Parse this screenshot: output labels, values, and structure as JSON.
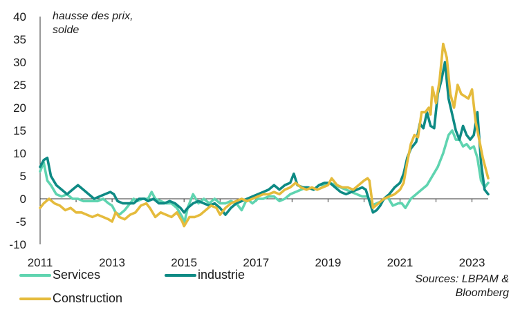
{
  "chart_data": {
    "type": "line",
    "title": "",
    "annotation": [
      "hausse des prix,",
      "solde"
    ],
    "xlabel": "",
    "ylabel": "",
    "xlim": [
      2011.0,
      2023.45
    ],
    "ylim": [
      -10,
      40
    ],
    "yticks": [
      -10,
      -5,
      0,
      5,
      10,
      15,
      20,
      25,
      30,
      35,
      40
    ],
    "xticks": [
      2011,
      2013,
      2015,
      2017,
      2019,
      2021,
      2023
    ],
    "grid": false,
    "source": [
      "Sources: LBPAM &",
      "Bloomberg"
    ],
    "series": [
      {
        "name": "Services",
        "color": "#5fd4b0",
        "points": [
          [
            2011.0,
            6
          ],
          [
            2011.1,
            8
          ],
          [
            2011.2,
            4
          ],
          [
            2011.3,
            3
          ],
          [
            2011.45,
            1
          ],
          [
            2011.6,
            0.5
          ],
          [
            2011.75,
            1
          ],
          [
            2011.9,
            0
          ],
          [
            2012.05,
            0
          ],
          [
            2012.2,
            -0.5
          ],
          [
            2012.4,
            -0.5
          ],
          [
            2012.6,
            -0.5
          ],
          [
            2012.75,
            0
          ],
          [
            2012.9,
            -1
          ],
          [
            2013.0,
            -1.5
          ],
          [
            2013.1,
            -3
          ],
          [
            2013.2,
            -3.5
          ],
          [
            2013.35,
            -2.5
          ],
          [
            2013.5,
            -1
          ],
          [
            2013.6,
            0
          ],
          [
            2013.7,
            -0.5
          ],
          [
            2013.85,
            0
          ],
          [
            2014.0,
            0
          ],
          [
            2014.1,
            1.5
          ],
          [
            2014.2,
            0
          ],
          [
            2014.35,
            -0.5
          ],
          [
            2014.5,
            -1
          ],
          [
            2014.65,
            -1
          ],
          [
            2014.8,
            -2
          ],
          [
            2014.95,
            -4
          ],
          [
            2015.0,
            -5.5
          ],
          [
            2015.1,
            -2
          ],
          [
            2015.25,
            1
          ],
          [
            2015.4,
            -1
          ],
          [
            2015.55,
            0
          ],
          [
            2015.7,
            -1
          ],
          [
            2015.85,
            0
          ],
          [
            2016.0,
            -1
          ],
          [
            2016.15,
            -1
          ],
          [
            2016.3,
            -0.5
          ],
          [
            2016.45,
            -1
          ],
          [
            2016.6,
            -2.5
          ],
          [
            2016.75,
            0
          ],
          [
            2016.9,
            -1
          ],
          [
            2017.05,
            0
          ],
          [
            2017.2,
            0
          ],
          [
            2017.35,
            0.5
          ],
          [
            2017.5,
            0.5
          ],
          [
            2017.65,
            -0.5
          ],
          [
            2017.8,
            0
          ],
          [
            2017.95,
            1
          ],
          [
            2018.1,
            1.5
          ],
          [
            2018.25,
            2
          ],
          [
            2018.4,
            2.5
          ],
          [
            2018.6,
            2
          ],
          [
            2018.75,
            3
          ],
          [
            2018.9,
            3
          ],
          [
            2019.05,
            3.5
          ],
          [
            2019.2,
            3
          ],
          [
            2019.35,
            2.5
          ],
          [
            2019.5,
            2
          ],
          [
            2019.65,
            1.5
          ],
          [
            2019.8,
            1
          ],
          [
            2019.95,
            0.5
          ],
          [
            2020.1,
            0.5
          ],
          [
            2020.2,
            -1.5
          ],
          [
            2020.35,
            -1
          ],
          [
            2020.5,
            -0.5
          ],
          [
            2020.65,
            0.5
          ],
          [
            2020.8,
            -1.5
          ],
          [
            2020.95,
            -1
          ],
          [
            2021.05,
            -1
          ],
          [
            2021.15,
            -2
          ],
          [
            2021.3,
            0
          ],
          [
            2021.45,
            1
          ],
          [
            2021.6,
            2
          ],
          [
            2021.75,
            3
          ],
          [
            2021.9,
            5
          ],
          [
            2022.05,
            7
          ],
          [
            2022.2,
            10
          ],
          [
            2022.35,
            14
          ],
          [
            2022.45,
            15
          ],
          [
            2022.55,
            13
          ],
          [
            2022.65,
            13
          ],
          [
            2022.75,
            11.5
          ],
          [
            2022.85,
            12
          ],
          [
            2022.95,
            11
          ],
          [
            2023.05,
            11.5
          ],
          [
            2023.15,
            9
          ],
          [
            2023.25,
            4
          ],
          [
            2023.35,
            2.5
          ],
          [
            2023.45,
            3.5
          ]
        ]
      },
      {
        "name": "industrie",
        "color": "#0e8a84",
        "points": [
          [
            2011.0,
            7
          ],
          [
            2011.1,
            8.5
          ],
          [
            2011.2,
            9
          ],
          [
            2011.3,
            5
          ],
          [
            2011.45,
            3
          ],
          [
            2011.6,
            2
          ],
          [
            2011.75,
            1
          ],
          [
            2011.9,
            2
          ],
          [
            2012.05,
            3
          ],
          [
            2012.2,
            2
          ],
          [
            2012.35,
            1
          ],
          [
            2012.5,
            0
          ],
          [
            2012.65,
            0.5
          ],
          [
            2012.8,
            1
          ],
          [
            2012.95,
            1.5
          ],
          [
            2013.05,
            1
          ],
          [
            2013.15,
            -0.5
          ],
          [
            2013.3,
            -1
          ],
          [
            2013.45,
            -1
          ],
          [
            2013.6,
            -1
          ],
          [
            2013.75,
            0
          ],
          [
            2013.9,
            0
          ],
          [
            2014.0,
            -0.5
          ],
          [
            2014.15,
            0
          ],
          [
            2014.3,
            -1
          ],
          [
            2014.45,
            -1
          ],
          [
            2014.6,
            -0.5
          ],
          [
            2014.75,
            -1
          ],
          [
            2014.9,
            -2
          ],
          [
            2015.0,
            -3
          ],
          [
            2015.1,
            -2
          ],
          [
            2015.25,
            -1
          ],
          [
            2015.4,
            -0.5
          ],
          [
            2015.55,
            -1
          ],
          [
            2015.7,
            -1.5
          ],
          [
            2015.85,
            -1
          ],
          [
            2016.0,
            -2
          ],
          [
            2016.15,
            -3.5
          ],
          [
            2016.3,
            -2
          ],
          [
            2016.45,
            -1
          ],
          [
            2016.6,
            -0.5
          ],
          [
            2016.75,
            0
          ],
          [
            2016.9,
            0.5
          ],
          [
            2017.05,
            1
          ],
          [
            2017.2,
            1.5
          ],
          [
            2017.35,
            2
          ],
          [
            2017.5,
            3
          ],
          [
            2017.65,
            2
          ],
          [
            2017.8,
            3
          ],
          [
            2017.95,
            3.5
          ],
          [
            2018.05,
            5.5
          ],
          [
            2018.15,
            3
          ],
          [
            2018.3,
            2.5
          ],
          [
            2018.45,
            2.5
          ],
          [
            2018.6,
            2
          ],
          [
            2018.75,
            3
          ],
          [
            2018.9,
            3.5
          ],
          [
            2019.05,
            3.5
          ],
          [
            2019.2,
            2.5
          ],
          [
            2019.35,
            1.5
          ],
          [
            2019.5,
            1
          ],
          [
            2019.65,
            1.5
          ],
          [
            2019.8,
            2
          ],
          [
            2019.95,
            2.5
          ],
          [
            2020.05,
            2
          ],
          [
            2020.15,
            -0.5
          ],
          [
            2020.25,
            -3
          ],
          [
            2020.35,
            -2.5
          ],
          [
            2020.45,
            -1.5
          ],
          [
            2020.55,
            0
          ],
          [
            2020.7,
            1
          ],
          [
            2020.85,
            2.5
          ],
          [
            2021.0,
            3.5
          ],
          [
            2021.1,
            5.5
          ],
          [
            2021.2,
            9
          ],
          [
            2021.3,
            11
          ],
          [
            2021.45,
            12.5
          ],
          [
            2021.55,
            16.5
          ],
          [
            2021.65,
            15.5
          ],
          [
            2021.75,
            19
          ],
          [
            2021.85,
            16
          ],
          [
            2021.95,
            15.5
          ],
          [
            2022.05,
            23
          ],
          [
            2022.15,
            26
          ],
          [
            2022.25,
            30
          ],
          [
            2022.35,
            22
          ],
          [
            2022.45,
            18.5
          ],
          [
            2022.55,
            15
          ],
          [
            2022.65,
            13
          ],
          [
            2022.75,
            16
          ],
          [
            2022.85,
            14
          ],
          [
            2022.95,
            13
          ],
          [
            2023.05,
            14
          ],
          [
            2023.15,
            19
          ],
          [
            2023.25,
            8
          ],
          [
            2023.35,
            2
          ],
          [
            2023.45,
            1
          ]
        ]
      },
      {
        "name": "Construction",
        "color": "#e5bb3c",
        "points": [
          [
            2011.0,
            -2
          ],
          [
            2011.1,
            -1
          ],
          [
            2011.25,
            0
          ],
          [
            2011.4,
            -1
          ],
          [
            2011.55,
            -1.5
          ],
          [
            2011.7,
            -2.5
          ],
          [
            2011.85,
            -2
          ],
          [
            2012.0,
            -3
          ],
          [
            2012.15,
            -3
          ],
          [
            2012.3,
            -3.5
          ],
          [
            2012.45,
            -4
          ],
          [
            2012.6,
            -3.5
          ],
          [
            2012.75,
            -4
          ],
          [
            2012.9,
            -4.5
          ],
          [
            2013.0,
            -5
          ],
          [
            2013.1,
            -3
          ],
          [
            2013.2,
            -4
          ],
          [
            2013.35,
            -4.5
          ],
          [
            2013.5,
            -3.5
          ],
          [
            2013.65,
            -3
          ],
          [
            2013.8,
            -1.5
          ],
          [
            2013.95,
            -1
          ],
          [
            2014.05,
            -2
          ],
          [
            2014.2,
            -4
          ],
          [
            2014.35,
            -3
          ],
          [
            2014.5,
            -3.5
          ],
          [
            2014.65,
            -4
          ],
          [
            2014.8,
            -3
          ],
          [
            2014.95,
            -5
          ],
          [
            2015.0,
            -6
          ],
          [
            2015.15,
            -4
          ],
          [
            2015.3,
            -4
          ],
          [
            2015.45,
            -3.5
          ],
          [
            2015.6,
            -2.5
          ],
          [
            2015.75,
            -1.5
          ],
          [
            2015.9,
            -2
          ],
          [
            2016.0,
            -3.5
          ],
          [
            2016.15,
            -2
          ],
          [
            2016.3,
            -1
          ],
          [
            2016.45,
            -0.5
          ],
          [
            2016.6,
            0
          ],
          [
            2016.75,
            -0.5
          ],
          [
            2016.9,
            0
          ],
          [
            2017.05,
            0.5
          ],
          [
            2017.2,
            1
          ],
          [
            2017.35,
            1
          ],
          [
            2017.5,
            1.5
          ],
          [
            2017.65,
            1
          ],
          [
            2017.8,
            2
          ],
          [
            2017.95,
            2.5
          ],
          [
            2018.1,
            3.5
          ],
          [
            2018.25,
            2.5
          ],
          [
            2018.4,
            2
          ],
          [
            2018.55,
            2.5
          ],
          [
            2018.7,
            2
          ],
          [
            2018.85,
            2.5
          ],
          [
            2019.0,
            3
          ],
          [
            2019.1,
            4.5
          ],
          [
            2019.25,
            3
          ],
          [
            2019.4,
            2.5
          ],
          [
            2019.55,
            2.5
          ],
          [
            2019.7,
            2
          ],
          [
            2019.85,
            3
          ],
          [
            2020.0,
            4
          ],
          [
            2020.1,
            4.5
          ],
          [
            2020.15,
            4
          ],
          [
            2020.25,
            -2
          ],
          [
            2020.4,
            -1
          ],
          [
            2020.55,
            0
          ],
          [
            2020.7,
            0.5
          ],
          [
            2020.85,
            1
          ],
          [
            2021.0,
            2
          ],
          [
            2021.1,
            3.5
          ],
          [
            2021.2,
            8
          ],
          [
            2021.3,
            12
          ],
          [
            2021.4,
            14
          ],
          [
            2021.5,
            13.5
          ],
          [
            2021.6,
            19
          ],
          [
            2021.7,
            19
          ],
          [
            2021.8,
            20
          ],
          [
            2021.85,
            18.5
          ],
          [
            2021.9,
            24.5
          ],
          [
            2022.0,
            21
          ],
          [
            2022.1,
            26
          ],
          [
            2022.2,
            34
          ],
          [
            2022.3,
            31
          ],
          [
            2022.4,
            23
          ],
          [
            2022.5,
            20
          ],
          [
            2022.6,
            25
          ],
          [
            2022.7,
            23
          ],
          [
            2022.8,
            22.5
          ],
          [
            2022.9,
            22
          ],
          [
            2023.0,
            24
          ],
          [
            2023.1,
            17
          ],
          [
            2023.2,
            13
          ],
          [
            2023.3,
            9
          ],
          [
            2023.4,
            6
          ],
          [
            2023.45,
            4.5
          ]
        ]
      }
    ]
  }
}
